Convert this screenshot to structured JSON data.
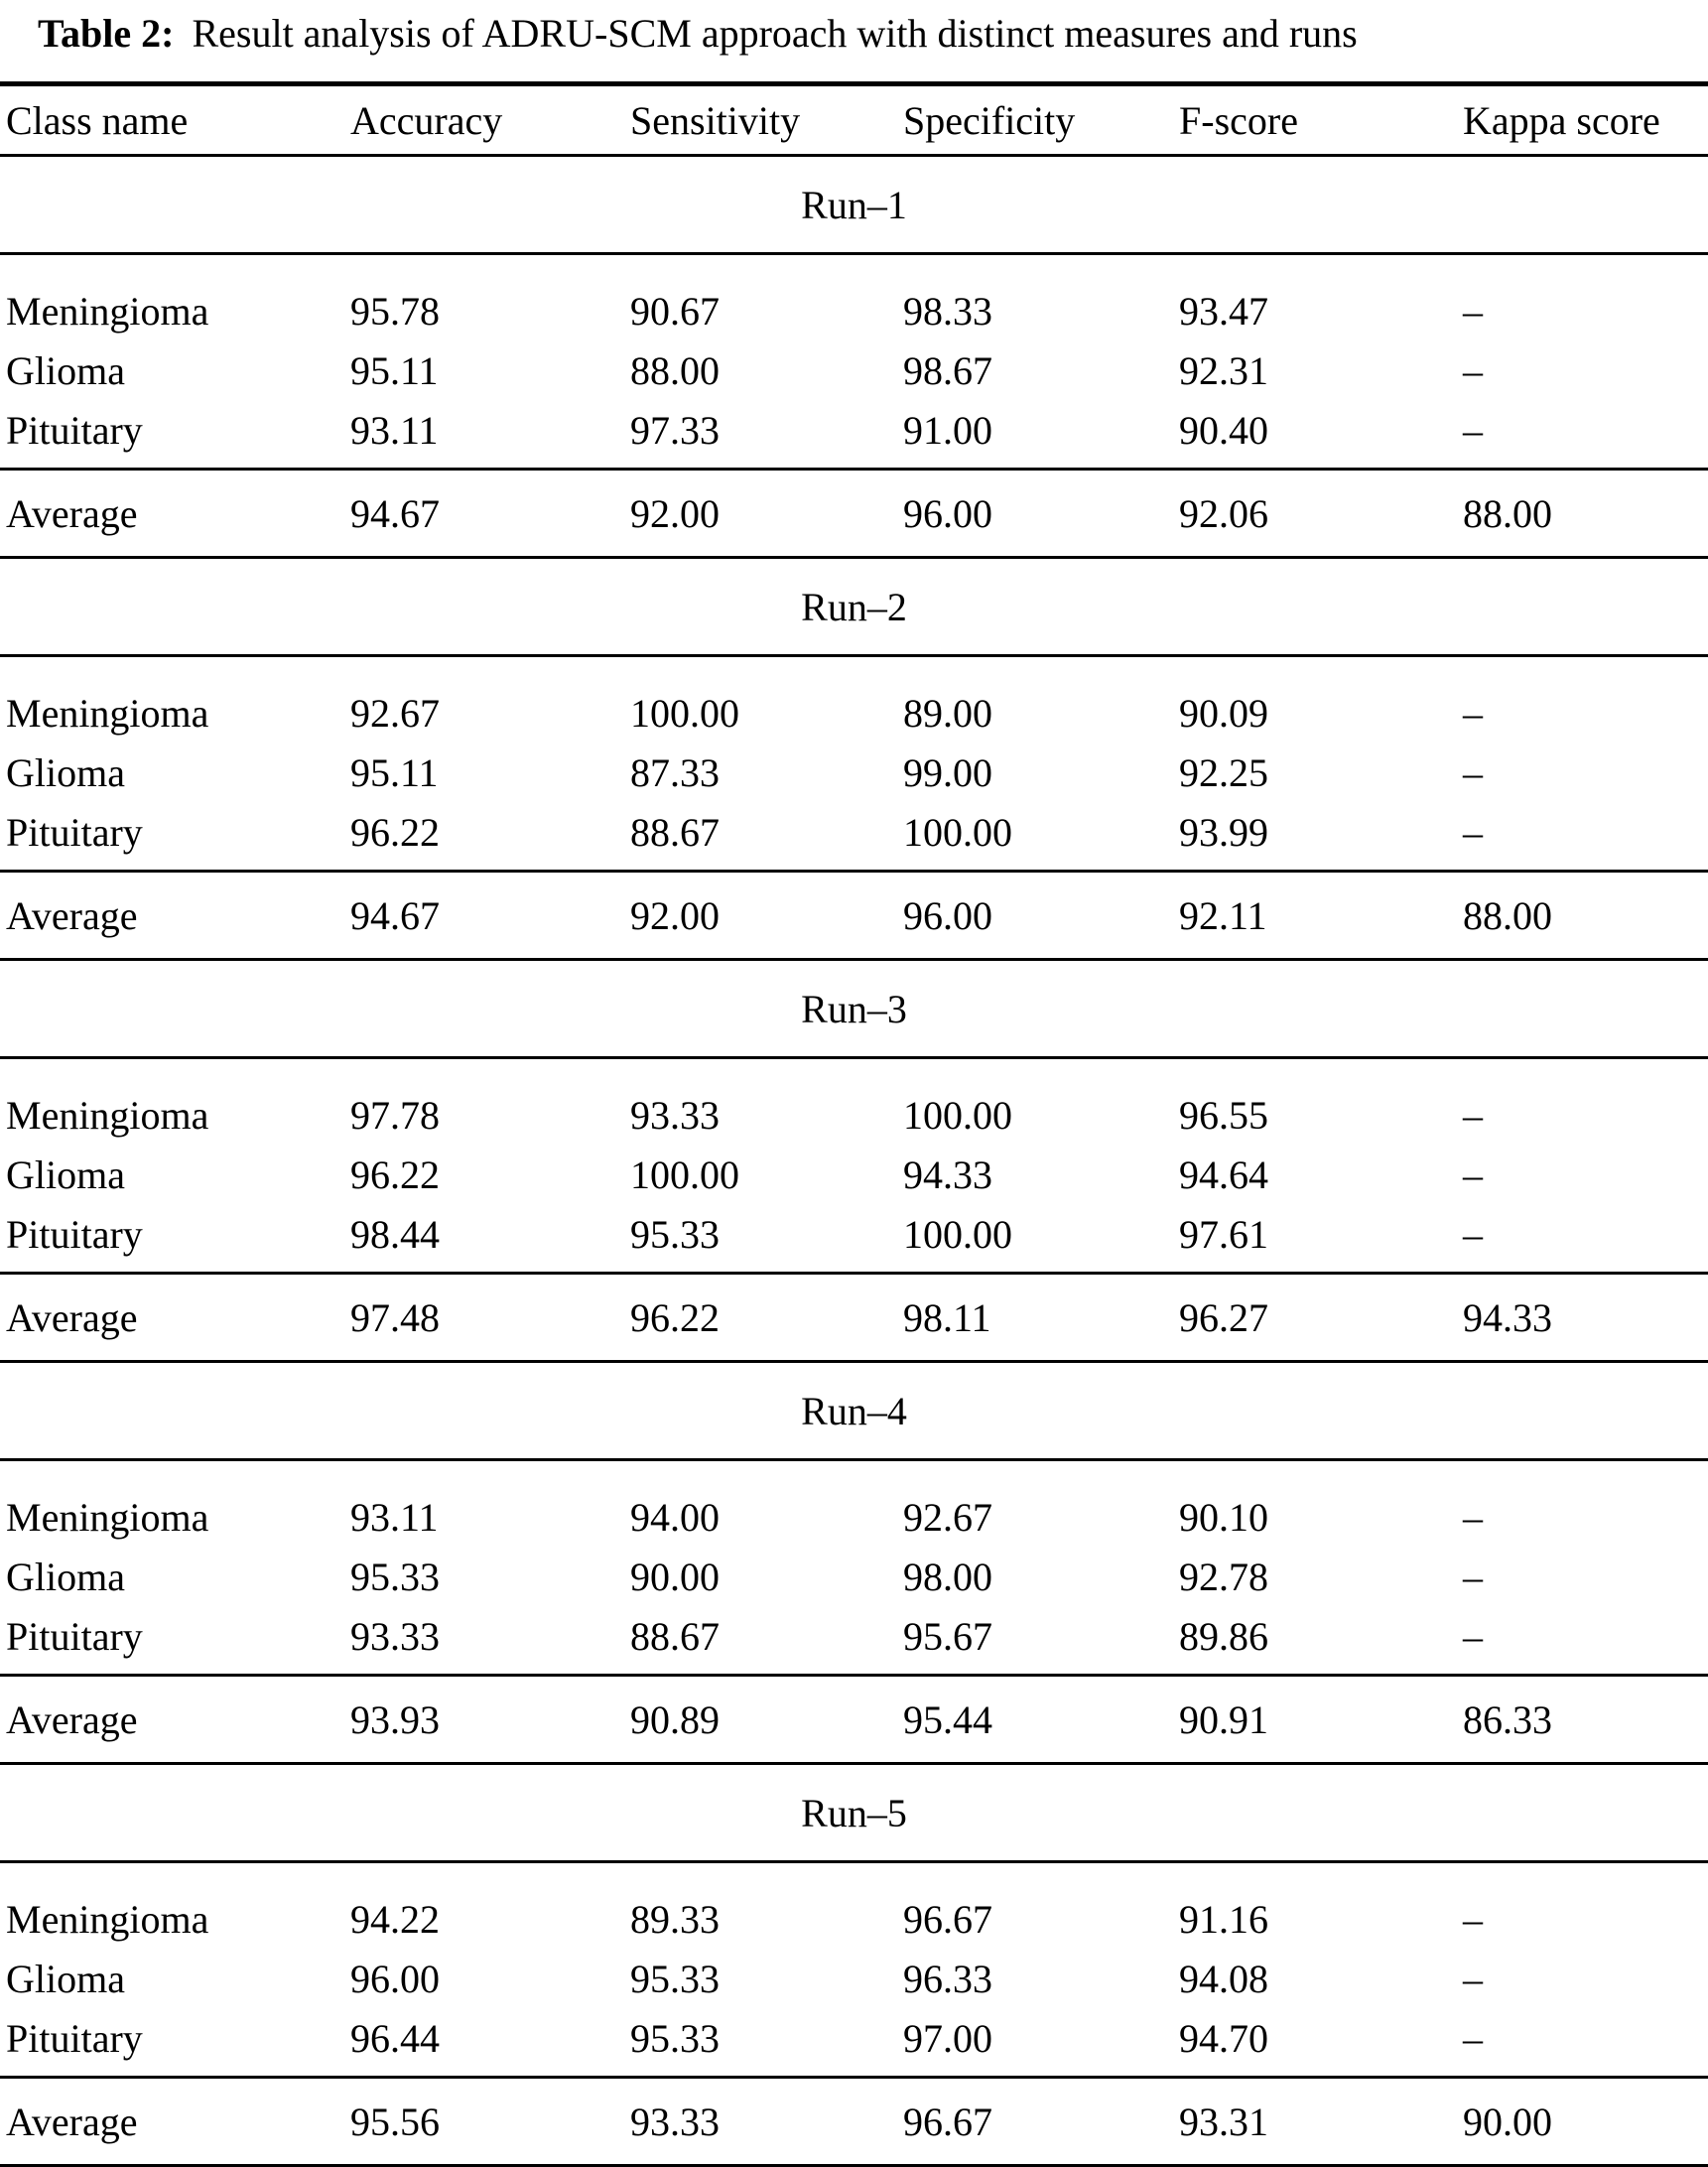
{
  "title": {
    "label": "Table 2:",
    "text": "Result analysis of ADRU-SCM approach with distinct measures and runs"
  },
  "table": {
    "columns": [
      "Class name",
      "Accuracy",
      "Sensitivity",
      "Specificity",
      "F-score",
      "Kappa score"
    ],
    "runs": [
      {
        "label": "Run–1",
        "rows": [
          {
            "class": "Meningioma",
            "values": [
              "95.78",
              "90.67",
              "98.33",
              "93.47",
              "–"
            ]
          },
          {
            "class": "Glioma",
            "values": [
              "95.11",
              "88.00",
              "98.67",
              "92.31",
              "–"
            ]
          },
          {
            "class": "Pituitary",
            "values": [
              "93.11",
              "97.33",
              "91.00",
              "90.40",
              "–"
            ]
          }
        ],
        "average": {
          "class": "Average",
          "values": [
            "94.67",
            "92.00",
            "96.00",
            "92.06",
            "88.00"
          ]
        }
      },
      {
        "label": "Run–2",
        "rows": [
          {
            "class": "Meningioma",
            "values": [
              "92.67",
              "100.00",
              "89.00",
              "90.09",
              "–"
            ]
          },
          {
            "class": "Glioma",
            "values": [
              "95.11",
              "87.33",
              "99.00",
              "92.25",
              "–"
            ]
          },
          {
            "class": "Pituitary",
            "values": [
              "96.22",
              "88.67",
              "100.00",
              "93.99",
              "–"
            ]
          }
        ],
        "average": {
          "class": "Average",
          "values": [
            "94.67",
            "92.00",
            "96.00",
            "92.11",
            "88.00"
          ]
        }
      },
      {
        "label": "Run–3",
        "rows": [
          {
            "class": "Meningioma",
            "values": [
              "97.78",
              "93.33",
              "100.00",
              "96.55",
              "–"
            ]
          },
          {
            "class": "Glioma",
            "values": [
              "96.22",
              "100.00",
              "94.33",
              "94.64",
              "–"
            ]
          },
          {
            "class": "Pituitary",
            "values": [
              "98.44",
              "95.33",
              "100.00",
              "97.61",
              "–"
            ]
          }
        ],
        "average": {
          "class": "Average",
          "values": [
            "97.48",
            "96.22",
            "98.11",
            "96.27",
            "94.33"
          ]
        }
      },
      {
        "label": "Run–4",
        "rows": [
          {
            "class": "Meningioma",
            "values": [
              "93.11",
              "94.00",
              "92.67",
              "90.10",
              "–"
            ]
          },
          {
            "class": "Glioma",
            "values": [
              "95.33",
              "90.00",
              "98.00",
              "92.78",
              "–"
            ]
          },
          {
            "class": "Pituitary",
            "values": [
              "93.33",
              "88.67",
              "95.67",
              "89.86",
              "–"
            ]
          }
        ],
        "average": {
          "class": "Average",
          "values": [
            "93.93",
            "90.89",
            "95.44",
            "90.91",
            "86.33"
          ]
        }
      },
      {
        "label": "Run–5",
        "rows": [
          {
            "class": "Meningioma",
            "values": [
              "94.22",
              "89.33",
              "96.67",
              "91.16",
              "–"
            ]
          },
          {
            "class": "Glioma",
            "values": [
              "96.00",
              "95.33",
              "96.33",
              "94.08",
              "–"
            ]
          },
          {
            "class": "Pituitary",
            "values": [
              "96.44",
              "95.33",
              "97.00",
              "94.70",
              "–"
            ]
          }
        ],
        "average": {
          "class": "Average",
          "values": [
            "95.56",
            "93.33",
            "96.67",
            "93.31",
            "90.00"
          ]
        }
      }
    ]
  },
  "colors": {
    "text": "#000000",
    "background": "#ffffff",
    "rule": "#000000"
  }
}
